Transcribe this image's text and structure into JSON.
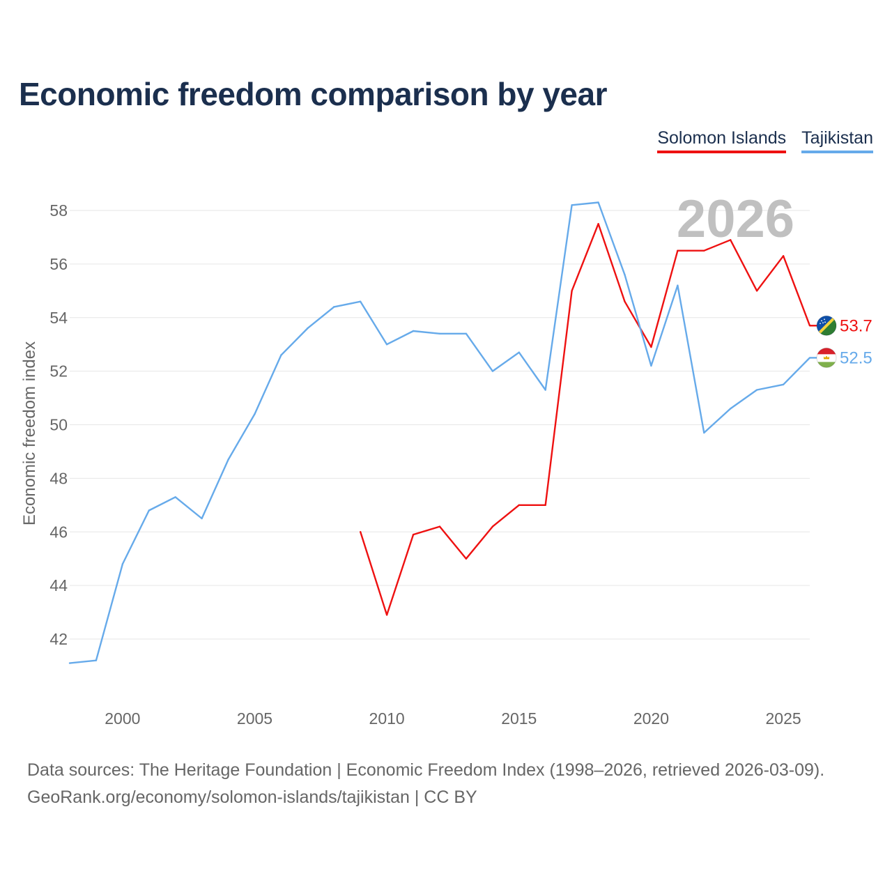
{
  "title": "Economic freedom comparison by year",
  "colors": {
    "solomon": "#ee1111",
    "tajikistan": "#66aaea",
    "title": "#1b2f4e",
    "grid": "#e6e6e6",
    "tick": "#666666",
    "year_watermark": "#c0c0c0"
  },
  "chart_data": {
    "type": "line",
    "title": "Economic freedom comparison by year",
    "ylabel": "Economic freedom index",
    "xlabel": "",
    "xlim": [
      1998,
      2026
    ],
    "ylim": [
      40,
      60
    ],
    "yticks": [
      42,
      44,
      46,
      48,
      50,
      52,
      54,
      56,
      58
    ],
    "xticks": [
      2000,
      2005,
      2010,
      2015,
      2020,
      2025
    ],
    "current_year_label": "2026",
    "legend": [
      "Solomon Islands",
      "Tajikistan"
    ],
    "series": [
      {
        "name": "Solomon Islands",
        "color": "#ee1111",
        "flag": "solomon-islands-flag-icon",
        "end_label": "53.7",
        "x": [
          2009,
          2010,
          2011,
          2012,
          2013,
          2014,
          2015,
          2016,
          2017,
          2018,
          2019,
          2020,
          2021,
          2022,
          2023,
          2024,
          2025,
          2026
        ],
        "values": [
          46.0,
          42.9,
          45.9,
          46.2,
          45.0,
          46.2,
          47.0,
          47.0,
          55.0,
          57.5,
          54.6,
          52.9,
          56.5,
          56.5,
          56.9,
          55.0,
          56.3,
          53.7
        ]
      },
      {
        "name": "Tajikistan",
        "color": "#66aaea",
        "flag": "tajikistan-flag-icon",
        "end_label": "52.5",
        "x": [
          1998,
          1999,
          2000,
          2001,
          2002,
          2003,
          2004,
          2005,
          2006,
          2007,
          2008,
          2009,
          2010,
          2011,
          2012,
          2013,
          2014,
          2015,
          2016,
          2017,
          2018,
          2019,
          2020,
          2021,
          2022,
          2023,
          2024,
          2025,
          2026
        ],
        "values": [
          41.1,
          41.2,
          44.8,
          46.8,
          47.3,
          46.5,
          48.7,
          50.4,
          52.6,
          53.6,
          54.4,
          54.6,
          53.0,
          53.5,
          53.4,
          53.4,
          52.0,
          52.7,
          51.3,
          58.2,
          58.3,
          55.6,
          52.2,
          55.2,
          49.7,
          50.6,
          51.3,
          51.5,
          52.5
        ]
      }
    ]
  },
  "footer": {
    "line1": "Data sources: The Heritage Foundation | Economic Freedom Index (1998–2026, retrieved 2026-03-09).",
    "line2": "GeoRank.org/economy/solomon-islands/tajikistan | CC BY"
  }
}
